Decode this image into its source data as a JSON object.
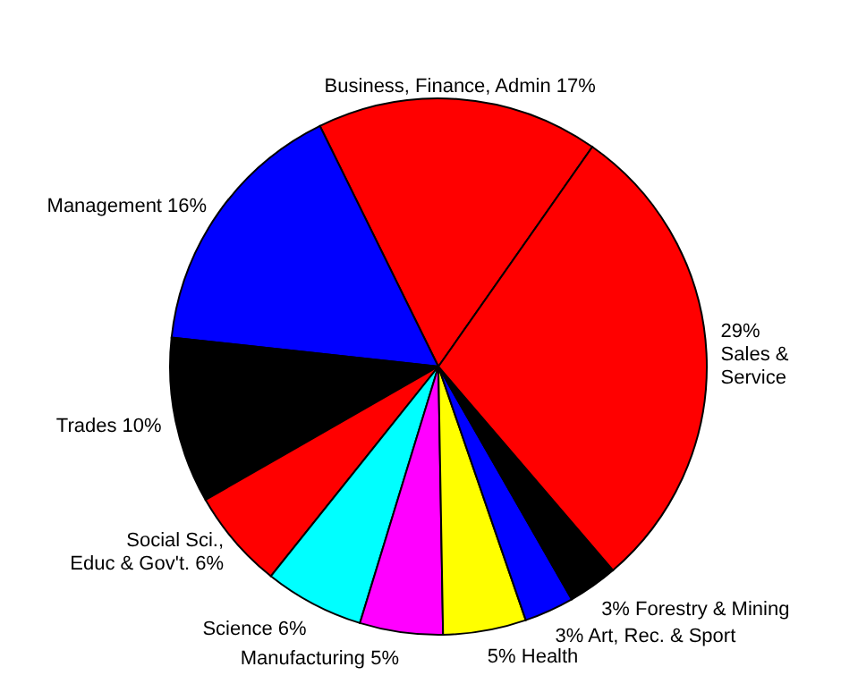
{
  "chart_data": {
    "type": "pie",
    "categories": [
      "Business, Finance, Admin",
      "Management",
      "Trades",
      "Social Sci., Educ & Gov't.",
      "Science",
      "Manufacturing",
      "Health",
      "Art, Rec. & Sport",
      "Forestry & Mining",
      "Sales & Service"
    ],
    "values": [
      17,
      16,
      10,
      6,
      6,
      5,
      5,
      3,
      3,
      29
    ],
    "value_labels": [
      "17%",
      "16%",
      "10%",
      "6%",
      "6%",
      "5%",
      "5%",
      "3%",
      "3%",
      "29%"
    ],
    "colors": [
      "#ff0000",
      "#0000ff",
      "#000000",
      "#ff0000",
      "#00ffff",
      "#ff00ff",
      "#ffff00",
      "#0000ff",
      "#000000",
      "#ff0000"
    ],
    "legend": false
  }
}
